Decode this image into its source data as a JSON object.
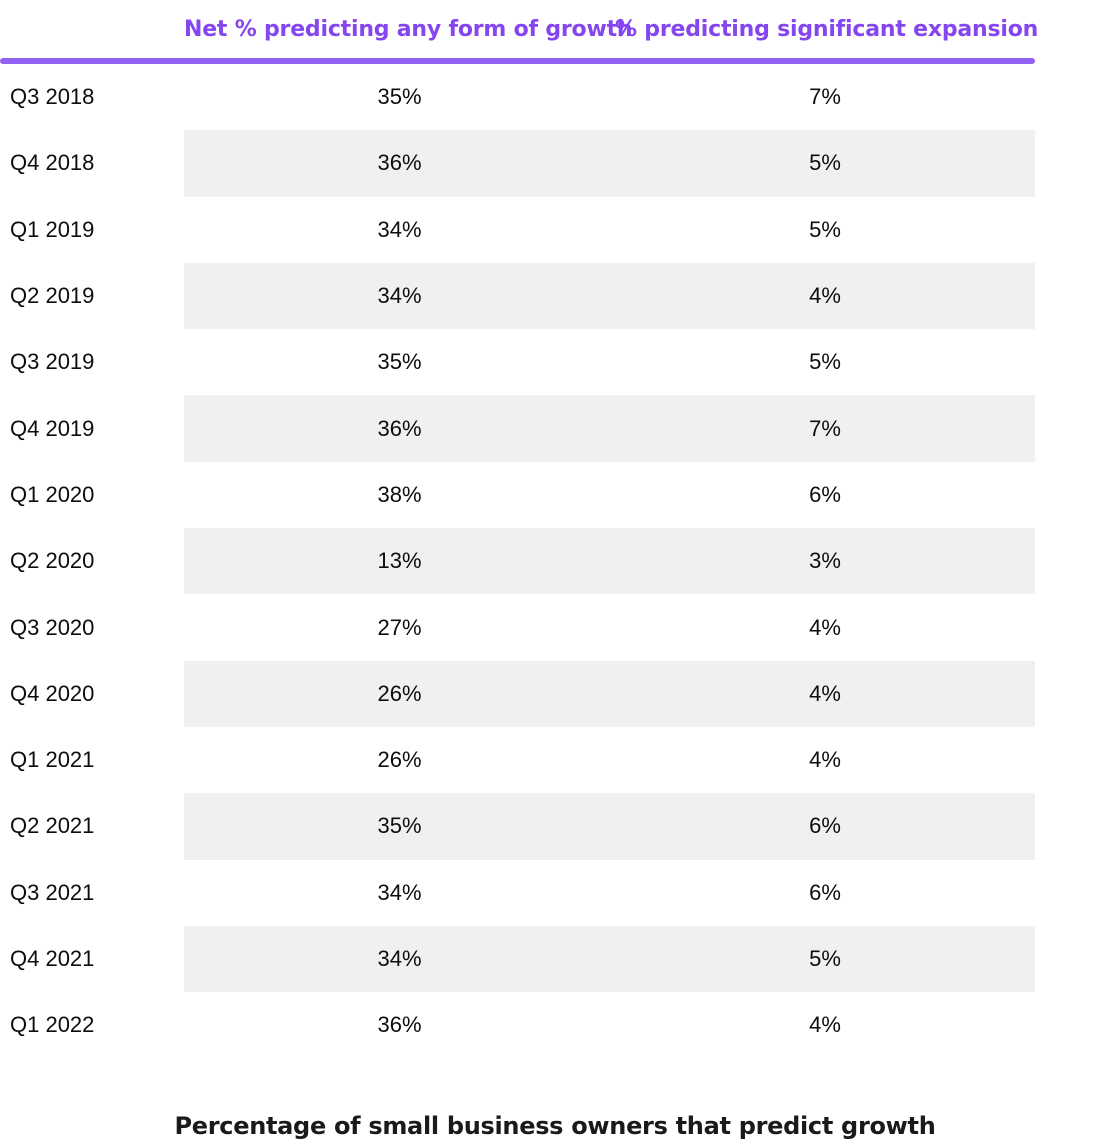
{
  "colors": {
    "accent": "#8545f0",
    "rule": "#9161f3",
    "stripe": "#f0f0f0"
  },
  "table": {
    "columns": [
      "Net % predicting any form of growth",
      "% predicting significant expansion"
    ],
    "rows": [
      {
        "quarter": "Q3 2018",
        "net_growth": "35%",
        "significant_expansion": "7%"
      },
      {
        "quarter": "Q4 2018",
        "net_growth": "36%",
        "significant_expansion": "5%"
      },
      {
        "quarter": "Q1 2019",
        "net_growth": "34%",
        "significant_expansion": "5%"
      },
      {
        "quarter": "Q2 2019",
        "net_growth": "34%",
        "significant_expansion": "4%"
      },
      {
        "quarter": "Q3 2019",
        "net_growth": "35%",
        "significant_expansion": "5%"
      },
      {
        "quarter": "Q4 2019",
        "net_growth": "36%",
        "significant_expansion": "7%"
      },
      {
        "quarter": "Q1 2020",
        "net_growth": "38%",
        "significant_expansion": "6%"
      },
      {
        "quarter": "Q2 2020",
        "net_growth": "13%",
        "significant_expansion": "3%"
      },
      {
        "quarter": "Q3 2020",
        "net_growth": "27%",
        "significant_expansion": "4%"
      },
      {
        "quarter": "Q4 2020",
        "net_growth": "26%",
        "significant_expansion": "4%"
      },
      {
        "quarter": "Q1 2021",
        "net_growth": "26%",
        "significant_expansion": "4%"
      },
      {
        "quarter": "Q2 2021",
        "net_growth": "35%",
        "significant_expansion": "6%"
      },
      {
        "quarter": "Q3 2021",
        "net_growth": "34%",
        "significant_expansion": "6%"
      },
      {
        "quarter": "Q4 2021",
        "net_growth": "34%",
        "significant_expansion": "5%"
      },
      {
        "quarter": "Q1 2022",
        "net_growth": "36%",
        "significant_expansion": "4%"
      }
    ]
  },
  "caption": "Percentage of small business owners that predict growth",
  "chart_data": {
    "type": "table",
    "categories": [
      "Q3 2018",
      "Q4 2018",
      "Q1 2019",
      "Q2 2019",
      "Q3 2019",
      "Q4 2019",
      "Q1 2020",
      "Q2 2020",
      "Q3 2020",
      "Q4 2020",
      "Q1 2021",
      "Q2 2021",
      "Q3 2021",
      "Q4 2021",
      "Q1 2022"
    ],
    "series": [
      {
        "name": "Net % predicting any form of growth",
        "values": [
          35,
          36,
          34,
          34,
          35,
          36,
          38,
          13,
          27,
          26,
          26,
          35,
          34,
          34,
          36
        ]
      },
      {
        "name": "% predicting significant expansion",
        "values": [
          7,
          5,
          5,
          4,
          5,
          7,
          6,
          3,
          4,
          4,
          4,
          6,
          6,
          5,
          4
        ]
      }
    ],
    "title": "Percentage of small business owners that predict growth",
    "value_unit": "%",
    "layout": {
      "striped_rows": "even rows shaded, data columns only",
      "header_color": "#8545f0"
    }
  }
}
